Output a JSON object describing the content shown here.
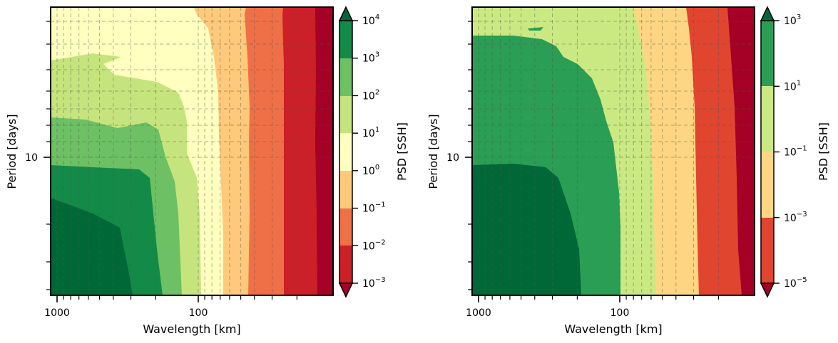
{
  "chart_data": [
    {
      "type": "heatmap",
      "subtype": "filled-contour",
      "xlabel": "Wavelength [km]",
      "ylabel": "Period [days]",
      "x_scale": "log",
      "x_axis_inverted": true,
      "y_scale": "log",
      "x_tick_labels": [
        "1000",
        "100"
      ],
      "y_tick_labels": [
        "10"
      ],
      "grid": true,
      "colorbar": {
        "label": "PSD [SSH]",
        "scale": "log",
        "extend": "both",
        "levels_exponent": [
          -3,
          -2,
          -1,
          0,
          1,
          2,
          3,
          4
        ],
        "tick_labels": [
          "10",
          "10",
          "10",
          "10",
          "10",
          "10",
          "10",
          "10"
        ],
        "tick_exponents": [
          "−3",
          "−2",
          "−1",
          "0",
          "1",
          "2",
          "3",
          "4"
        ],
        "colors": [
          "#a50026",
          "#cb2027",
          "#ef7047",
          "#fec97a",
          "#ffffc0",
          "#c6e47d",
          "#6dc064",
          "#138a48",
          "#006837"
        ]
      },
      "bands_wavelength_km": [
        {
          "band": "10^-3 to 10^-2",
          "from_km": 19,
          "to_km": 30
        },
        {
          "band": "10^-2 to 10^-1",
          "from_km": 30,
          "to_km": 55
        },
        {
          "band": "10^-1 to 10^0",
          "from_km": 55,
          "to_km": 70
        },
        {
          "band": "10^0 to 10^1",
          "from_km": 70,
          "to_km": 100
        },
        {
          "band": "10^1 to 10^2",
          "from_km": 100,
          "to_km": 200
        },
        {
          "band": "10^2 to 10^3",
          "from_km": 200,
          "to_km": 300
        },
        {
          "band": "10^3 to 10^4",
          "from_km": 300,
          "to_km": 700
        },
        {
          "band": "above 10^4",
          "from_km": 700,
          "to_km": 1100
        }
      ]
    },
    {
      "type": "heatmap",
      "subtype": "filled-contour",
      "xlabel": "Wavelength [km]",
      "ylabel": "Period [days]",
      "x_scale": "log",
      "x_axis_inverted": true,
      "y_scale": "log",
      "x_tick_labels": [
        "1000",
        "100"
      ],
      "y_tick_labels": [
        "10"
      ],
      "grid": true,
      "colorbar": {
        "label": "PSD [SSH]",
        "scale": "log",
        "extend": "both",
        "levels_exponent": [
          -5,
          -3,
          -1,
          1,
          3
        ],
        "tick_labels": [
          "10",
          "10",
          "10",
          "10",
          "10"
        ],
        "tick_exponents": [
          "−5",
          "−3",
          "−1",
          "1",
          "3"
        ],
        "colors": [
          "#a50026",
          "#e04530",
          "#fed683",
          "#cbe983",
          "#2a9e55",
          "#006837"
        ]
      },
      "bands_wavelength_km": [
        {
          "band": "10^-5 to 10^-3",
          "from_km": 20,
          "to_km": 40
        },
        {
          "band": "10^-3 to 10^-1",
          "from_km": 40,
          "to_km": 60
        },
        {
          "band": "10^-1 to 10^1",
          "from_km": 60,
          "to_km": 100
        },
        {
          "band": "10^1 to 10^3",
          "from_km": 100,
          "to_km": 350
        },
        {
          "band": "above 10^3",
          "from_km": 350,
          "to_km": 1100
        }
      ]
    }
  ]
}
